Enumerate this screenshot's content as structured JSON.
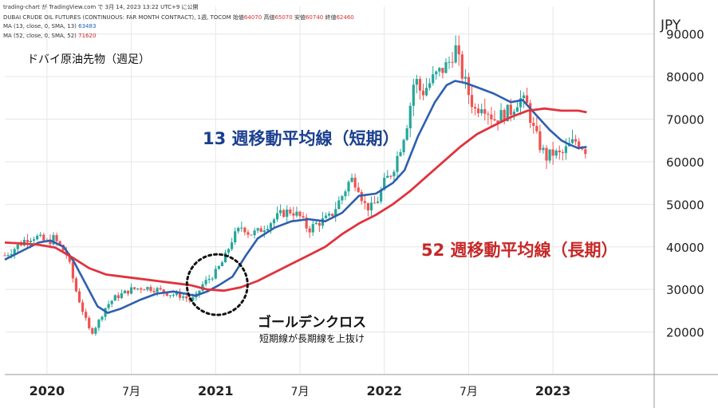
{
  "header": {
    "attribution": "trading-chart が TradingView.com で 3月 14, 2023 13:22 UTC+9 に公開",
    "symbol": "DUBAI CRUDE OIL FUTURES (CONTINUOUS: FAR MONTH CONTRACT), 1週, TOCOM",
    "ohlc": [
      {
        "label": "始値",
        "value": "64070"
      },
      {
        "label": "高値",
        "value": "65070"
      },
      {
        "label": "安値",
        "value": "60740"
      },
      {
        "label": "終値",
        "value": "62460"
      }
    ],
    "ma13_label": "MA (13, close, 0, SMA, 13)",
    "ma13_value": "63483",
    "ma52_label": "MA (52, close, 0, SMA, 52)",
    "ma52_value": "71620"
  },
  "title": "ドバイ原油先物（週足）",
  "currency": "JPY",
  "annotations": {
    "ma13": "13 週移動平均線（短期）",
    "ma52": "52 週移動平均線（長期）",
    "golden_cross": "ゴールデンクロス",
    "golden_cross_note": "短期線が長期線を上抜け"
  },
  "colors": {
    "up": "#26a69a",
    "down": "#ef5350",
    "ma13": "#2e5fae",
    "ma52": "#e0333e",
    "grid": "#e6e6e6"
  },
  "chart_data": {
    "type": "candlestick",
    "title": "ドバイ原油先物（週足）",
    "y_unit": "JPY",
    "ylim": [
      10000,
      96500
    ],
    "y_ticks": [
      20000,
      30000,
      40000,
      50000,
      60000,
      70000,
      80000,
      90000
    ],
    "y_tick_labels": [
      "20000",
      "30000",
      "40000",
      "50000",
      "60000",
      "70000",
      "80000",
      "90000"
    ],
    "x_ticks": [
      {
        "label": "2020",
        "date": 2020.0
      },
      {
        "label": "7月",
        "date": 2020.5
      },
      {
        "label": "2021",
        "date": 2021.0
      },
      {
        "label": "7月",
        "date": 2021.5
      },
      {
        "label": "2022",
        "date": 2022.0
      },
      {
        "label": "7月",
        "date": 2022.5
      },
      {
        "label": "2023",
        "date": 2023.0
      }
    ],
    "xlim": [
      2019.75,
      2023.6
    ],
    "price_anchors": [
      [
        2019.75,
        38000
      ],
      [
        2019.82,
        40000
      ],
      [
        2019.88,
        42000
      ],
      [
        2019.93,
        42500
      ],
      [
        2020.0,
        41000
      ],
      [
        2020.04,
        42000
      ],
      [
        2020.08,
        40000
      ],
      [
        2020.12,
        38000
      ],
      [
        2020.17,
        30000
      ],
      [
        2020.22,
        24000
      ],
      [
        2020.26,
        19500
      ],
      [
        2020.3,
        22000
      ],
      [
        2020.35,
        26000
      ],
      [
        2020.4,
        28000
      ],
      [
        2020.45,
        29000
      ],
      [
        2020.5,
        30000
      ],
      [
        2020.58,
        30500
      ],
      [
        2020.65,
        30000
      ],
      [
        2020.72,
        29000
      ],
      [
        2020.8,
        28500
      ],
      [
        2020.85,
        27500
      ],
      [
        2020.88,
        28000
      ],
      [
        2020.92,
        31000
      ],
      [
        2021.0,
        34000
      ],
      [
        2021.05,
        37000
      ],
      [
        2021.1,
        42000
      ],
      [
        2021.16,
        45000
      ],
      [
        2021.2,
        43000
      ],
      [
        2021.25,
        43500
      ],
      [
        2021.33,
        46000
      ],
      [
        2021.4,
        48000
      ],
      [
        2021.45,
        48500
      ],
      [
        2021.5,
        47000
      ],
      [
        2021.55,
        44000
      ],
      [
        2021.6,
        45500
      ],
      [
        2021.68,
        47000
      ],
      [
        2021.75,
        52000
      ],
      [
        2021.8,
        56000
      ],
      [
        2021.84,
        55000
      ],
      [
        2021.88,
        50000
      ],
      [
        2021.92,
        49000
      ],
      [
        2021.96,
        51000
      ],
      [
        2022.0,
        55000
      ],
      [
        2022.05,
        58000
      ],
      [
        2022.1,
        64000
      ],
      [
        2022.14,
        70000
      ],
      [
        2022.18,
        80000
      ],
      [
        2022.22,
        76000
      ],
      [
        2022.3,
        80000
      ],
      [
        2022.38,
        83000
      ],
      [
        2022.42,
        87000
      ],
      [
        2022.45,
        82000
      ],
      [
        2022.5,
        76000
      ],
      [
        2022.54,
        72000
      ],
      [
        2022.58,
        74000
      ],
      [
        2022.65,
        70000
      ],
      [
        2022.7,
        71000
      ],
      [
        2022.75,
        72000
      ],
      [
        2022.8,
        75000
      ],
      [
        2022.85,
        73000
      ],
      [
        2022.88,
        68000
      ],
      [
        2022.92,
        64000
      ],
      [
        2022.96,
        61000
      ],
      [
        2023.0,
        62000
      ],
      [
        2023.05,
        61500
      ],
      [
        2023.1,
        64000
      ],
      [
        2023.14,
        65000
      ],
      [
        2023.18,
        63500
      ],
      [
        2023.2,
        62460
      ]
    ],
    "series": [
      {
        "name": "MA (13, close, 0, SMA, 13)",
        "color": "#2e5fae",
        "points": [
          [
            2019.75,
            37000
          ],
          [
            2019.85,
            39000
          ],
          [
            2019.95,
            41000
          ],
          [
            2020.02,
            41500
          ],
          [
            2020.1,
            40000
          ],
          [
            2020.16,
            36500
          ],
          [
            2020.22,
            32000
          ],
          [
            2020.3,
            26000
          ],
          [
            2020.36,
            24500
          ],
          [
            2020.44,
            25500
          ],
          [
            2020.55,
            27500
          ],
          [
            2020.65,
            29000
          ],
          [
            2020.75,
            29500
          ],
          [
            2020.82,
            29000
          ],
          [
            2020.88,
            28500
          ],
          [
            2020.95,
            29500
          ],
          [
            2021.02,
            31000
          ],
          [
            2021.1,
            33000
          ],
          [
            2021.18,
            38000
          ],
          [
            2021.25,
            42000
          ],
          [
            2021.35,
            44500
          ],
          [
            2021.45,
            46000
          ],
          [
            2021.55,
            46500
          ],
          [
            2021.65,
            46000
          ],
          [
            2021.75,
            48000
          ],
          [
            2021.85,
            52000
          ],
          [
            2021.95,
            52500
          ],
          [
            2022.05,
            55000
          ],
          [
            2022.12,
            58000
          ],
          [
            2022.2,
            66000
          ],
          [
            2022.3,
            74000
          ],
          [
            2022.37,
            78000
          ],
          [
            2022.42,
            79000
          ],
          [
            2022.48,
            78500
          ],
          [
            2022.55,
            77500
          ],
          [
            2022.65,
            76000
          ],
          [
            2022.75,
            74000
          ],
          [
            2022.82,
            74500
          ],
          [
            2022.9,
            71000
          ],
          [
            2022.98,
            67500
          ],
          [
            2023.05,
            65000
          ],
          [
            2023.1,
            64000
          ],
          [
            2023.15,
            63200
          ],
          [
            2023.2,
            63483
          ]
        ]
      },
      {
        "name": "MA (52, close, 0, SMA, 52)",
        "color": "#e0333e",
        "points": [
          [
            2019.75,
            41000
          ],
          [
            2019.85,
            40800
          ],
          [
            2019.95,
            40500
          ],
          [
            2020.05,
            39800
          ],
          [
            2020.15,
            37500
          ],
          [
            2020.25,
            35000
          ],
          [
            2020.35,
            33500
          ],
          [
            2020.45,
            33000
          ],
          [
            2020.55,
            32500
          ],
          [
            2020.65,
            32000
          ],
          [
            2020.75,
            31500
          ],
          [
            2020.85,
            31000
          ],
          [
            2020.95,
            30000
          ],
          [
            2021.05,
            29700
          ],
          [
            2021.15,
            30500
          ],
          [
            2021.25,
            32000
          ],
          [
            2021.35,
            34000
          ],
          [
            2021.45,
            36000
          ],
          [
            2021.55,
            38000
          ],
          [
            2021.65,
            40000
          ],
          [
            2021.75,
            43000
          ],
          [
            2021.85,
            45500
          ],
          [
            2021.95,
            47500
          ],
          [
            2022.05,
            50000
          ],
          [
            2022.15,
            53000
          ],
          [
            2022.25,
            56500
          ],
          [
            2022.35,
            60000
          ],
          [
            2022.45,
            63500
          ],
          [
            2022.55,
            66500
          ],
          [
            2022.65,
            68500
          ],
          [
            2022.75,
            70500
          ],
          [
            2022.85,
            72000
          ],
          [
            2022.95,
            72500
          ],
          [
            2023.05,
            72000
          ],
          [
            2023.15,
            72000
          ],
          [
            2023.2,
            71620
          ]
        ]
      }
    ],
    "golden_cross": {
      "date": 2021.0,
      "value": 30000,
      "label": "ゴールデンクロス"
    }
  }
}
